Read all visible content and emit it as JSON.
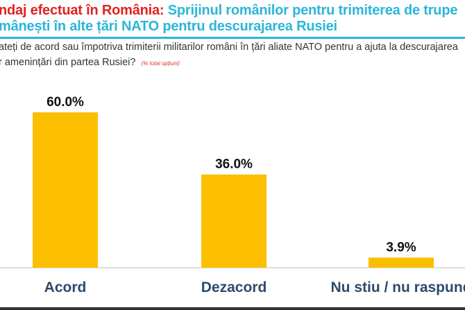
{
  "title": {
    "prefix": "ndaj efectuat în România:",
    "main_line1": "Sprijinul românilor pentru trimiterea de trupe",
    "main_line2": "mânești în alte țări NATO pentru descurajarea Rusiei"
  },
  "question": {
    "line1": "ateți de acord sau împotriva trimiterii militarilor români în țări aliate NATO pentru a ajuta la descurajarea",
    "line2": "r amenințări din partea Rusiei?",
    "note": "(% total opțiuni)"
  },
  "colors": {
    "bar": "#fbbf00",
    "title_red": "#e32020",
    "title_teal": "#2bb6d8",
    "label": "#2d4a6b"
  },
  "chart_data": {
    "type": "bar",
    "categories": [
      "Acord",
      "Dezacord",
      "Nu stiu / nu raspund"
    ],
    "values": [
      60.0,
      36.0,
      3.9
    ],
    "data_labels": [
      "60.0%",
      "36.0%",
      "3.9%"
    ],
    "ylim": [
      0,
      60
    ],
    "grid": false
  }
}
